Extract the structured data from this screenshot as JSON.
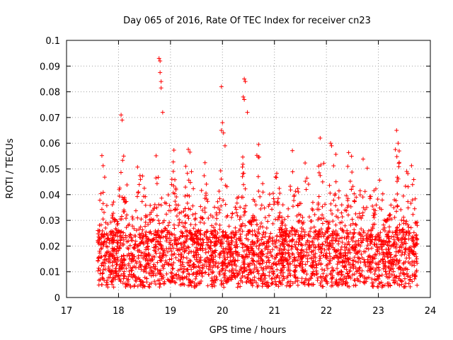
{
  "chart_data": {
    "type": "scatter",
    "title": "Day 065 of 2016, Rate Of TEC Index for receiver cn23",
    "xlabel": "GPS time / hours",
    "ylabel": "ROTI / TECUs",
    "xlim": [
      17,
      24
    ],
    "ylim": [
      0,
      0.1
    ],
    "xticks": [
      17,
      18,
      19,
      20,
      21,
      22,
      23,
      24
    ],
    "xtick_labels": [
      "17",
      "18",
      "19",
      "20",
      "21",
      "22",
      "23",
      "24"
    ],
    "yticks": [
      0,
      0.01,
      0.02,
      0.03,
      0.04,
      0.05,
      0.06,
      0.07,
      0.08,
      0.09,
      0.1
    ],
    "ytick_labels": [
      "0",
      "0.01",
      "0.02",
      "0.03",
      "0.04",
      "0.05",
      "0.06",
      "0.07",
      "0.08",
      "0.09",
      "0.1"
    ],
    "grid": true,
    "marker": "+",
    "color": "#ff0000",
    "series": [
      {
        "name": "ROTI",
        "x_range": [
          17.6,
          23.75
        ],
        "generator": "seeded-noise",
        "count": 3000,
        "notable_points": [
          [
            18.05,
            0.071
          ],
          [
            18.07,
            0.069
          ],
          [
            18.1,
            0.055
          ],
          [
            18.78,
            0.093
          ],
          [
            18.8,
            0.092
          ],
          [
            18.8,
            0.0875
          ],
          [
            18.82,
            0.084
          ],
          [
            18.82,
            0.0815
          ],
          [
            18.85,
            0.072
          ],
          [
            19.98,
            0.082
          ],
          [
            19.98,
            0.065
          ],
          [
            20.0,
            0.068
          ],
          [
            20.02,
            0.064
          ],
          [
            20.05,
            0.059
          ],
          [
            20.42,
            0.085
          ],
          [
            20.44,
            0.084
          ],
          [
            20.4,
            0.078
          ],
          [
            20.42,
            0.077
          ],
          [
            20.48,
            0.072
          ],
          [
            21.88,
            0.062
          ],
          [
            22.08,
            0.06
          ],
          [
            22.1,
            0.059
          ],
          [
            23.35,
            0.065
          ],
          [
            23.38,
            0.06
          ],
          [
            23.4,
            0.057
          ]
        ]
      }
    ]
  }
}
